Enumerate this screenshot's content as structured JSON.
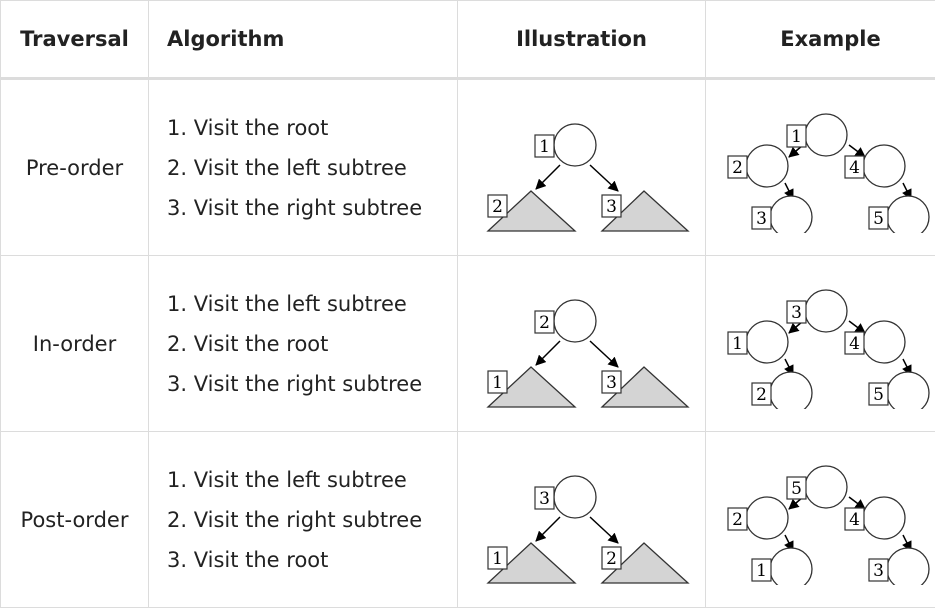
{
  "headers": {
    "traversal": "Traversal",
    "algorithm": "Algorithm",
    "illustration": "Illustration",
    "example": "Example"
  },
  "rows": [
    {
      "name": "Pre-order",
      "steps": [
        "1. Visit the root",
        "2. Visit the left subtree",
        "3. Visit the right subtree"
      ],
      "illustration": {
        "root": "1",
        "left": "2",
        "right": "3"
      },
      "example": {
        "root": "1",
        "left": "2",
        "right": "4",
        "left_child": "3",
        "right_child": "5"
      }
    },
    {
      "name": "In-order",
      "steps": [
        "1. Visit the left subtree",
        "2. Visit the root",
        "3. Visit the right subtree"
      ],
      "illustration": {
        "root": "2",
        "left": "1",
        "right": "3"
      },
      "example": {
        "root": "3",
        "left": "1",
        "right": "4",
        "left_child": "2",
        "right_child": "5"
      }
    },
    {
      "name": "Post-order",
      "steps": [
        "1. Visit the left subtree",
        "2. Visit the right subtree",
        "3. Visit the root"
      ],
      "illustration": {
        "root": "3",
        "left": "1",
        "right": "2"
      },
      "example": {
        "root": "5",
        "left": "2",
        "right": "4",
        "left_child": "1",
        "right_child": "3"
      }
    }
  ]
}
